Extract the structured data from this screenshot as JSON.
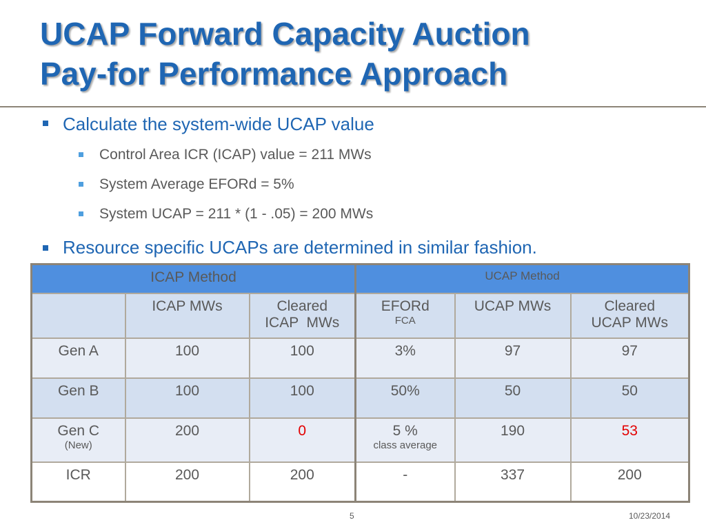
{
  "slide": {
    "title_line1": "UCAP Forward Capacity Auction",
    "title_line2": "Pay-for Performance Approach",
    "bullets": {
      "b1": "Calculate the system-wide UCAP value",
      "b1_1": "Control Area ICR (ICAP) value = 211 MWs",
      "b1_2": "System Average EFORd = 5%",
      "b1_3": "System UCAP = 211 * (1 - .05) = 200 MWs",
      "b2": "Resource specific UCAPs are determined in similar fashion."
    },
    "page_number": "5",
    "date": "10/23/2014"
  },
  "table": {
    "group_headers": {
      "icap": "ICAP Method",
      "ucap": "UCAP Method"
    },
    "columns": {
      "icap_mws": "ICAP MWs",
      "cleared_icap_l1": "Cleared",
      "cleared_icap_l2": "ICAP  MWs",
      "eford": "EFORd",
      "eford_sub": "FCA",
      "ucap_mws": "UCAP MWs",
      "cleared_ucap_l1": "Cleared",
      "cleared_ucap_l2": "UCAP MWs"
    },
    "rows": [
      {
        "name": "Gen A",
        "note": "",
        "icap": "100",
        "cleared_icap": "100",
        "eford": "3%",
        "eford_note": "",
        "ucap": "97",
        "cleared_ucap": "97"
      },
      {
        "name": "Gen B",
        "note": "",
        "icap": "100",
        "cleared_icap": "100",
        "eford": "50%",
        "eford_note": "",
        "ucap": "50",
        "cleared_ucap": "50"
      },
      {
        "name": "Gen C",
        "note": "(New)",
        "icap": "200",
        "cleared_icap": "0",
        "eford": "5 %",
        "eford_note": "class average",
        "ucap": "190",
        "cleared_ucap": "53"
      },
      {
        "name": "ICR",
        "note": "",
        "icap": "200",
        "cleared_icap": "200",
        "eford": "-",
        "eford_note": "",
        "ucap": "337",
        "cleared_ucap": "200"
      }
    ],
    "highlight_color": "#e30000"
  }
}
